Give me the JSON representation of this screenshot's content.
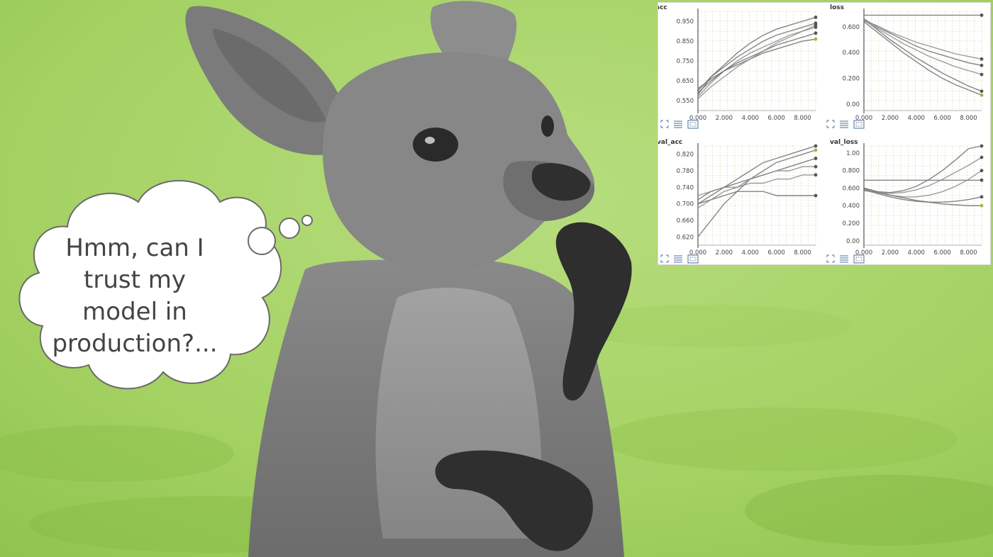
{
  "thought_bubble": {
    "lines": [
      "Hmm, can I",
      "trust my",
      "model in",
      "production?..."
    ]
  },
  "colors": {
    "background_green": "#a6d466",
    "kangaroo_gray": "#7d7d7d",
    "text_gray": "#444444",
    "line_gray": "#6e6e6e",
    "accent_olive": "#9dbb3c"
  },
  "icons": [
    "expand-icon",
    "list-icon",
    "fit-icon"
  ],
  "chart_data": [
    {
      "type": "line",
      "title": "acc",
      "x": [
        0,
        1,
        2,
        3,
        4,
        5,
        6,
        7,
        8,
        9
      ],
      "xticks": [
        "0.000",
        "2.000",
        "4.000",
        "6.000",
        "8.000"
      ],
      "yticks": [
        "0.550",
        "0.650",
        "0.750",
        "0.850",
        "0.950"
      ],
      "ylim": [
        0.5,
        1.0
      ],
      "series": [
        {
          "values": [
            0.58,
            0.67,
            0.73,
            0.79,
            0.84,
            0.88,
            0.91,
            0.93,
            0.95,
            0.97
          ]
        },
        {
          "values": [
            0.6,
            0.67,
            0.72,
            0.77,
            0.81,
            0.85,
            0.88,
            0.9,
            0.92,
            0.94
          ]
        },
        {
          "values": [
            0.57,
            0.64,
            0.7,
            0.75,
            0.79,
            0.82,
            0.85,
            0.88,
            0.9,
            0.92
          ]
        },
        {
          "values": [
            0.59,
            0.65,
            0.7,
            0.74,
            0.77,
            0.8,
            0.83,
            0.85,
            0.87,
            0.89
          ]
        },
        {
          "values": [
            0.61,
            0.66,
            0.7,
            0.73,
            0.76,
            0.79,
            0.81,
            0.83,
            0.85,
            0.86
          ]
        },
        {
          "values": [
            0.56,
            0.62,
            0.67,
            0.72,
            0.76,
            0.8,
            0.84,
            0.87,
            0.9,
            0.93
          ]
        }
      ]
    },
    {
      "type": "line",
      "title": "loss",
      "x": [
        0,
        1,
        2,
        3,
        4,
        5,
        6,
        7,
        8,
        9
      ],
      "xticks": [
        "0.000",
        "2.000",
        "4.000",
        "6.000",
        "8.000"
      ],
      "yticks": [
        "0.00",
        "0.200",
        "0.400",
        "0.600"
      ],
      "ylim": [
        -0.05,
        0.72
      ],
      "series": [
        {
          "values": [
            0.69,
            0.69,
            0.69,
            0.69,
            0.69,
            0.69,
            0.69,
            0.69,
            0.69,
            0.69
          ]
        },
        {
          "values": [
            0.66,
            0.58,
            0.5,
            0.43,
            0.36,
            0.3,
            0.24,
            0.19,
            0.14,
            0.1
          ]
        },
        {
          "values": [
            0.65,
            0.59,
            0.53,
            0.47,
            0.42,
            0.37,
            0.33,
            0.29,
            0.26,
            0.23
          ]
        },
        {
          "values": [
            0.66,
            0.6,
            0.55,
            0.5,
            0.45,
            0.41,
            0.38,
            0.35,
            0.32,
            0.3
          ]
        },
        {
          "values": [
            0.64,
            0.56,
            0.48,
            0.4,
            0.33,
            0.26,
            0.2,
            0.15,
            0.11,
            0.07
          ]
        },
        {
          "values": [
            0.65,
            0.61,
            0.56,
            0.52,
            0.48,
            0.45,
            0.42,
            0.39,
            0.37,
            0.35
          ]
        }
      ]
    },
    {
      "type": "line",
      "title": "val_acc",
      "x": [
        0,
        1,
        2,
        3,
        4,
        5,
        6,
        7,
        8,
        9
      ],
      "xticks": [
        "0.000",
        "2.000",
        "4.000",
        "6.000",
        "8.000"
      ],
      "yticks": [
        "0.620",
        "0.660",
        "0.700",
        "0.740",
        "0.780",
        "0.820"
      ],
      "ylim": [
        0.6,
        0.84
      ],
      "series": [
        {
          "values": [
            0.7,
            0.72,
            0.74,
            0.76,
            0.78,
            0.8,
            0.81,
            0.82,
            0.83,
            0.84
          ]
        },
        {
          "values": [
            0.71,
            0.73,
            0.74,
            0.75,
            0.76,
            0.77,
            0.78,
            0.79,
            0.8,
            0.81
          ]
        },
        {
          "values": [
            0.72,
            0.73,
            0.74,
            0.74,
            0.75,
            0.75,
            0.76,
            0.76,
            0.77,
            0.77
          ]
        },
        {
          "values": [
            0.7,
            0.71,
            0.72,
            0.73,
            0.73,
            0.73,
            0.72,
            0.72,
            0.72,
            0.72
          ]
        },
        {
          "values": [
            0.62,
            0.66,
            0.7,
            0.73,
            0.76,
            0.78,
            0.8,
            0.81,
            0.82,
            0.83
          ]
        },
        {
          "values": [
            0.69,
            0.71,
            0.73,
            0.74,
            0.76,
            0.77,
            0.78,
            0.78,
            0.79,
            0.79
          ]
        }
      ]
    },
    {
      "type": "line",
      "title": "val_loss",
      "x": [
        0,
        1,
        2,
        3,
        4,
        5,
        6,
        7,
        8,
        9
      ],
      "xticks": [
        "0.000",
        "2.000",
        "4.000",
        "6.000",
        "8.000"
      ],
      "yticks": [
        "0.00",
        "0.200",
        "0.400",
        "0.600",
        "0.800",
        "1.00"
      ],
      "ylim": [
        -0.05,
        1.08
      ],
      "series": [
        {
          "values": [
            0.69,
            0.69,
            0.69,
            0.69,
            0.69,
            0.69,
            0.69,
            0.69,
            0.69,
            0.69
          ]
        },
        {
          "values": [
            0.6,
            0.56,
            0.55,
            0.57,
            0.62,
            0.7,
            0.8,
            0.92,
            1.05,
            1.08
          ]
        },
        {
          "values": [
            0.59,
            0.55,
            0.52,
            0.5,
            0.5,
            0.52,
            0.56,
            0.62,
            0.7,
            0.8
          ]
        },
        {
          "values": [
            0.58,
            0.54,
            0.5,
            0.47,
            0.45,
            0.44,
            0.44,
            0.45,
            0.47,
            0.5
          ]
        },
        {
          "values": [
            0.6,
            0.56,
            0.52,
            0.49,
            0.46,
            0.44,
            0.42,
            0.41,
            0.4,
            0.4
          ]
        },
        {
          "values": [
            0.57,
            0.55,
            0.54,
            0.55,
            0.58,
            0.63,
            0.7,
            0.78,
            0.86,
            0.95
          ]
        }
      ]
    }
  ]
}
